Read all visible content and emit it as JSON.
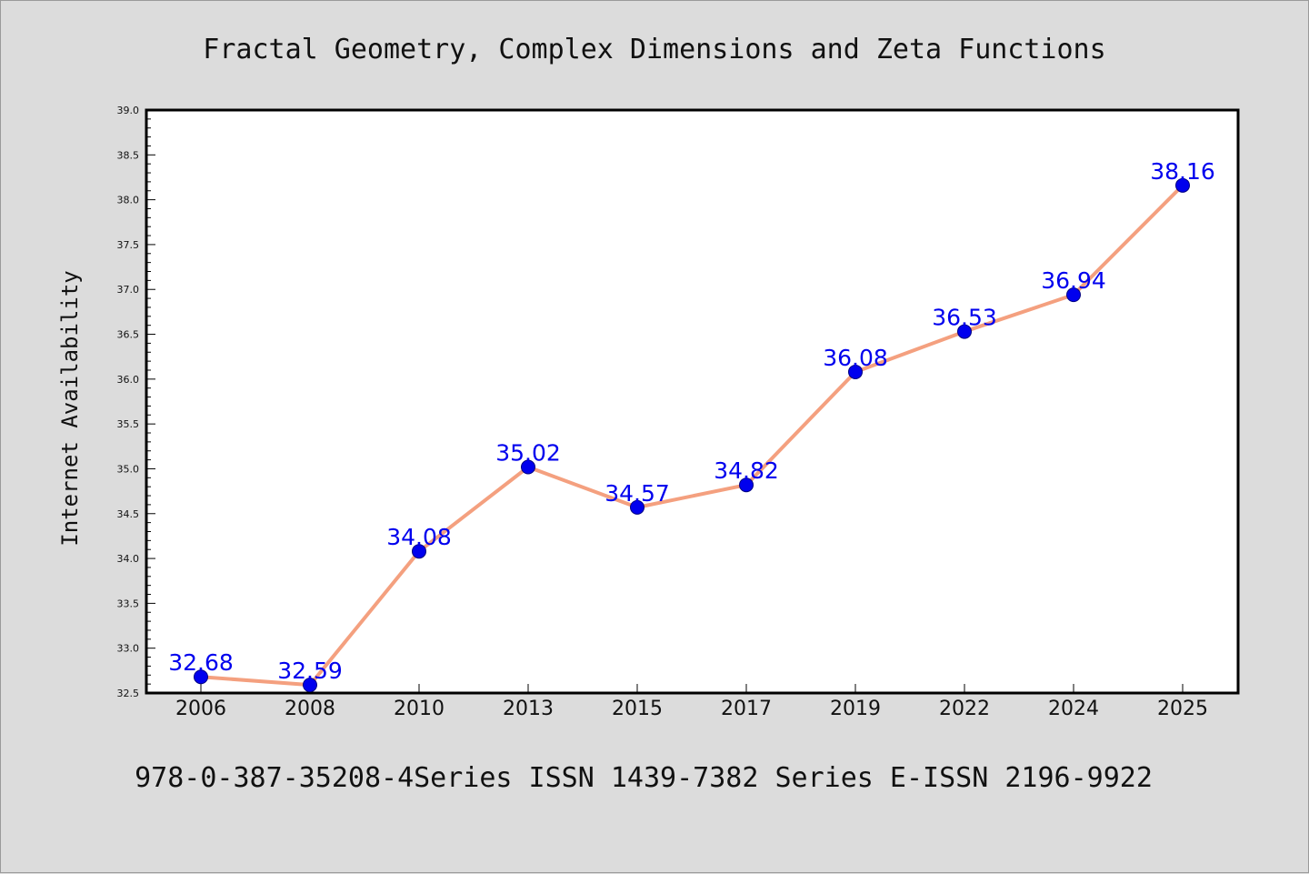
{
  "chart_data": {
    "type": "line",
    "title": "Fractal Geometry, Complex Dimensions and Zeta Functions",
    "ylabel": "Internet Availability",
    "xlabel": "",
    "footer": "978-0-387-35208-4Series ISSN 1439-7382 Series E-ISSN 2196-9922",
    "categories": [
      "2006",
      "2008",
      "2010",
      "2013",
      "2015",
      "2017",
      "2019",
      "2022",
      "2024",
      "2025"
    ],
    "values": [
      32.68,
      32.59,
      34.08,
      35.02,
      34.57,
      34.82,
      36.08,
      36.53,
      36.94,
      38.16
    ],
    "data_labels": [
      "32.68",
      "32.59",
      "34.08",
      "35.02",
      "34.57",
      "34.82",
      "36.08",
      "36.53",
      "36.94",
      "38.16"
    ],
    "ylim": [
      32.5,
      39.0
    ],
    "yticks": [
      "32.5",
      "33.0",
      "33.5",
      "34.0",
      "34.5",
      "35.0",
      "35.5",
      "36.0",
      "36.5",
      "37.0",
      "37.5",
      "38.0",
      "38.5",
      "39.0"
    ],
    "grid": false,
    "colors": {
      "line": "#f4a07f",
      "marker": "#0000ee",
      "label": "#0000ee",
      "background": "#dcdcdc",
      "plot_background": "#ffffff"
    }
  }
}
